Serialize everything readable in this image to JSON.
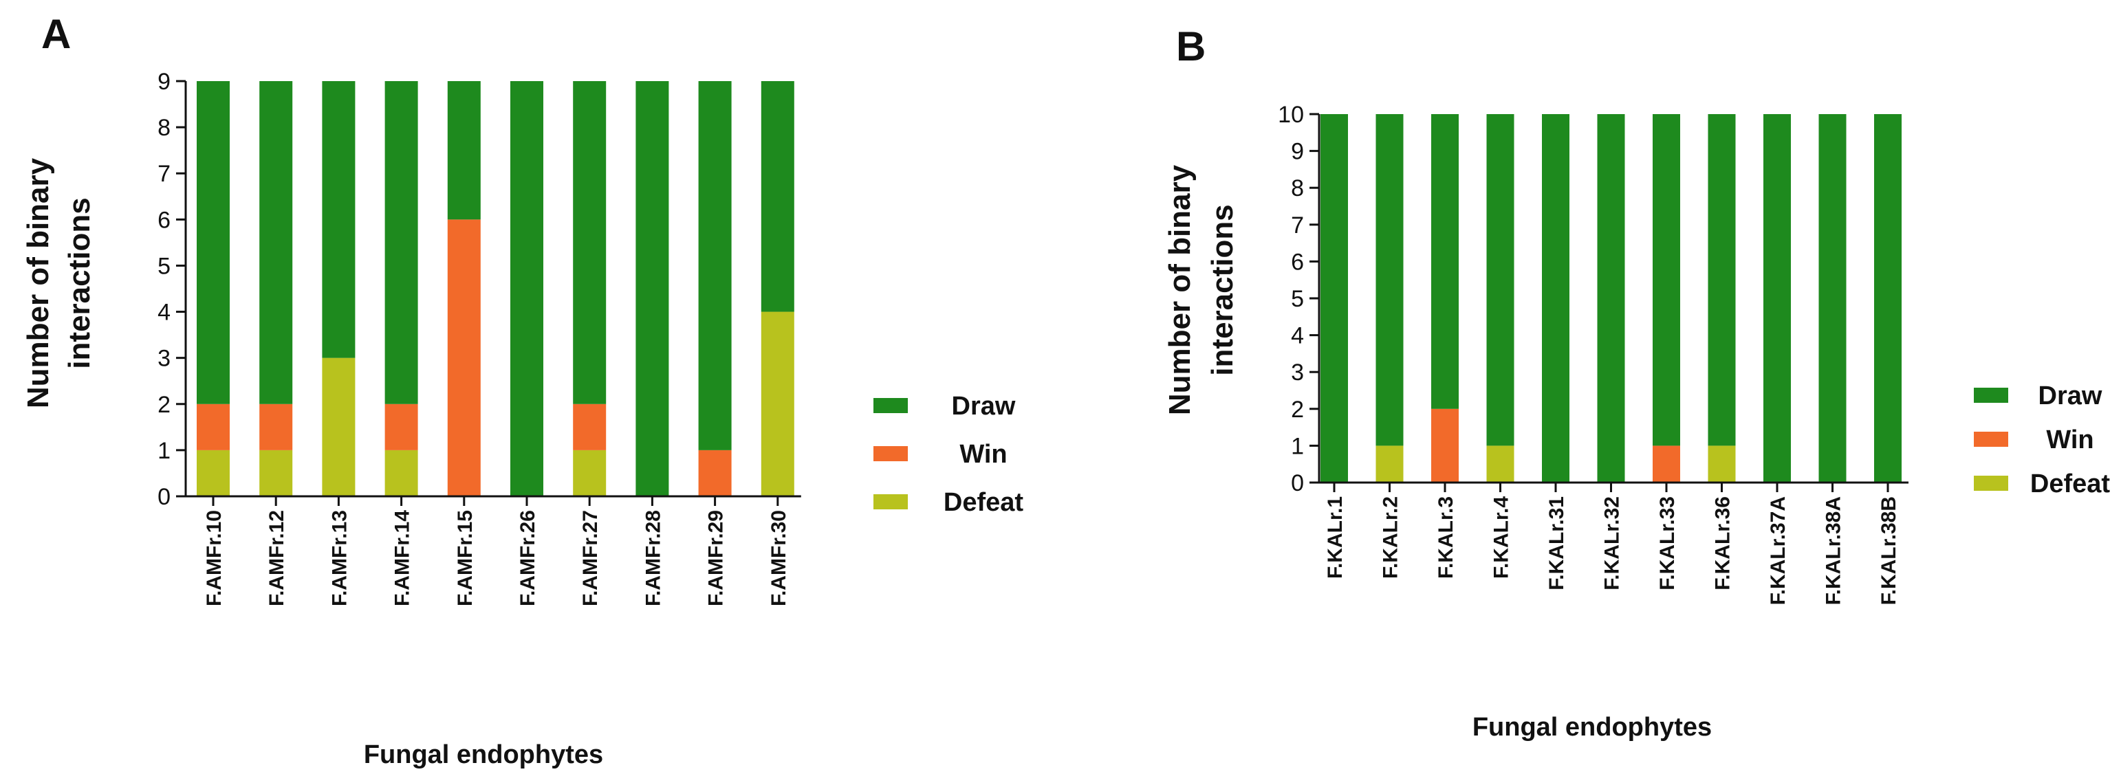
{
  "chart_data": [
    {
      "type": "bar",
      "stacked": true,
      "panel": "A",
      "ylabel_line1": "Number of binary",
      "ylabel_line2": "interactions",
      "xlabel": "Fungal endophytes",
      "ylim": [
        0,
        9
      ],
      "yticks": [
        "0",
        "1",
        "2",
        "3",
        "4",
        "5",
        "6",
        "7",
        "8",
        "9"
      ],
      "categories": [
        "F.AMFr.10",
        "F.AMFr.12",
        "F.AMFr.13",
        "F.AMFr.14",
        "F.AMFr.15",
        "F.AMFr.26",
        "F.AMFr.27",
        "F.AMFr.28",
        "F.AMFr.29",
        "F.AMFr.30"
      ],
      "series": [
        {
          "name": "Defeat",
          "color": "#b8c21e",
          "values": [
            1,
            1,
            3,
            1,
            0,
            0,
            1,
            0,
            0,
            4
          ]
        },
        {
          "name": "Win",
          "color": "#f26a2a",
          "values": [
            1,
            1,
            0,
            1,
            6,
            0,
            1,
            0,
            1,
            0
          ]
        },
        {
          "name": "Draw",
          "color": "#1e8a1e",
          "values": [
            7,
            7,
            6,
            7,
            3,
            9,
            7,
            9,
            8,
            5
          ]
        }
      ],
      "legend_position": "right",
      "legend_order": [
        "Draw",
        "Win",
        "Defeat"
      ]
    },
    {
      "type": "bar",
      "stacked": true,
      "panel": "B",
      "ylabel_line1": "Number of binary",
      "ylabel_line2": "interactions",
      "xlabel": "Fungal endophytes",
      "ylim": [
        0,
        10
      ],
      "yticks": [
        "0",
        "1",
        "2",
        "3",
        "4",
        "5",
        "6",
        "7",
        "8",
        "9",
        "10"
      ],
      "categories": [
        "F.KALr.1",
        "F.KALr.2",
        "F.KALr.3",
        "F.KALr.4",
        "F.KALr.31",
        "F.KALr.32",
        "F.KALr.33",
        "F.KALr.36",
        "F.KALr.37A",
        "F.KALr.38A",
        "F.KALr.38B"
      ],
      "series": [
        {
          "name": "Defeat",
          "color": "#b8c21e",
          "values": [
            0,
            1,
            0,
            1,
            0,
            0,
            0,
            1,
            0,
            0,
            0
          ]
        },
        {
          "name": "Win",
          "color": "#f26a2a",
          "values": [
            0,
            0,
            2,
            0,
            0,
            0,
            1,
            0,
            0,
            0,
            0
          ]
        },
        {
          "name": "Draw",
          "color": "#1e8a1e",
          "values": [
            10,
            9,
            8,
            9,
            10,
            10,
            9,
            9,
            10,
            10,
            10
          ]
        }
      ],
      "legend_position": "right",
      "legend_order": [
        "Draw",
        "Win",
        "Defeat"
      ]
    }
  ]
}
